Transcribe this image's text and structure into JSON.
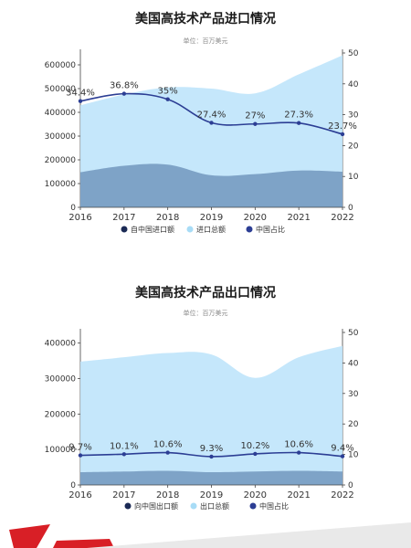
{
  "chart_data": [
    {
      "type": "area",
      "title": "美国高技术产品进口情况",
      "subtitle": "单位：百万美元",
      "categories": [
        "2016",
        "2017",
        "2018",
        "2019",
        "2020",
        "2021",
        "2022"
      ],
      "ylim": [
        0,
        650000
      ],
      "yticks": [
        "0",
        "100000",
        "200000",
        "300000",
        "400000",
        "500000",
        "600000"
      ],
      "y2lim": [
        0,
        50
      ],
      "y2ticks": [
        "0",
        "10",
        "20",
        "30",
        "40",
        "50"
      ],
      "legend_position": "bottom",
      "series": [
        {
          "name": "自中国进口额",
          "axis": "left",
          "kind": "area",
          "color": "#7a9fc4",
          "values": [
            148000,
            175000,
            180000,
            135000,
            140000,
            155000,
            150000
          ]
        },
        {
          "name": "进口总额",
          "axis": "left",
          "kind": "area",
          "color": "#bfe4fb",
          "values": [
            430000,
            475000,
            505000,
            500000,
            480000,
            560000,
            640000
          ]
        },
        {
          "name": "中国占比",
          "axis": "right",
          "kind": "line",
          "color": "#2c3e94",
          "values": [
            34.4,
            36.8,
            35,
            27.4,
            27,
            27.3,
            23.7
          ],
          "labels": [
            "34.4%",
            "36.8%",
            "35%",
            "27.4%",
            "27%",
            "27.3%",
            "23.7%"
          ]
        }
      ],
      "legend_colors": [
        "#1b2a55",
        "#a8dcf6",
        "#2c3e94"
      ]
    },
    {
      "type": "area",
      "title": "美国高技术产品出口情况",
      "subtitle": "单位：百万美元",
      "categories": [
        "2016",
        "2017",
        "2018",
        "2019",
        "2020",
        "2021",
        "2022"
      ],
      "ylim": [
        0,
        430000
      ],
      "yticks": [
        "0",
        "100000",
        "200000",
        "300000",
        "400000"
      ],
      "y2lim": [
        0,
        50
      ],
      "y2ticks": [
        "0",
        "10",
        "20",
        "30",
        "40",
        "50"
      ],
      "legend_position": "bottom",
      "series": [
        {
          "name": "向中国出口额",
          "axis": "left",
          "kind": "area",
          "color": "#7a9fc4",
          "values": [
            36000,
            38000,
            40000,
            36000,
            38000,
            40000,
            38000
          ]
        },
        {
          "name": "出口总额",
          "axis": "left",
          "kind": "area",
          "color": "#bfe4fb",
          "values": [
            348000,
            360000,
            372000,
            368000,
            302000,
            360000,
            392000
          ]
        },
        {
          "name": "中国占比",
          "axis": "right",
          "kind": "line",
          "color": "#2c3e94",
          "values": [
            9.7,
            10.1,
            10.6,
            9.3,
            10.2,
            10.6,
            9.4
          ],
          "labels": [
            "9.7%",
            "10.1%",
            "10.6%",
            "9.3%",
            "10.2%",
            "10.6%",
            "9.4%"
          ]
        }
      ],
      "legend_colors": [
        "#1b2a55",
        "#a8dcf6",
        "#2c3e94"
      ]
    }
  ]
}
